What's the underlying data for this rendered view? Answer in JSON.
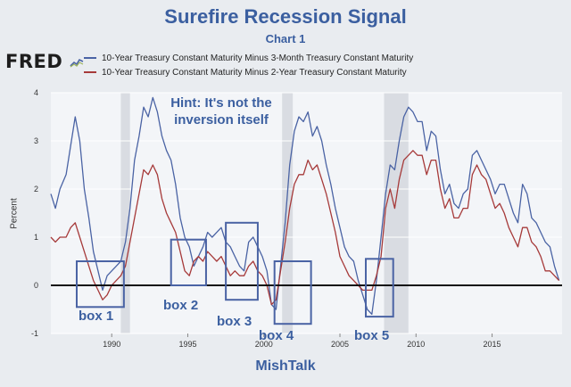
{
  "title": "Surefire Recession Signal",
  "subtitle": "Chart 1",
  "logo": "FRED",
  "footer": "MishTalk",
  "annotation": "Hint: It's not the inversion itself",
  "colors": {
    "series1": "#4a63a4",
    "series2": "#a63a3a",
    "accent": "#3b5fa0",
    "recession": "#d9dce2",
    "box": "#4a63a4"
  },
  "chart_data": {
    "type": "line",
    "title": "Surefire Recession Signal",
    "ylabel": "Percent",
    "xlabel": "",
    "xlim": [
      1986.0,
      2019.6
    ],
    "ylim": [
      -1,
      4
    ],
    "yticks": [
      -1,
      0,
      1,
      2,
      3,
      4
    ],
    "xticks": [
      1990,
      1995,
      2000,
      2005,
      2010,
      2015
    ],
    "recessions": [
      [
        1990.6,
        1991.2
      ],
      [
        2001.2,
        2001.9
      ],
      [
        2007.9,
        2009.5
      ]
    ],
    "boxes": [
      {
        "label": "box 1",
        "x0": 1987.7,
        "x1": 1990.8,
        "y0": -0.45,
        "y1": 0.5
      },
      {
        "label": "box 2",
        "x0": 1993.9,
        "x1": 1996.2,
        "y0": 0.0,
        "y1": 0.95
      },
      {
        "label": "box 3",
        "x0": 1997.5,
        "x1": 1999.6,
        "y0": -0.3,
        "y1": 1.3
      },
      {
        "label": "box 4",
        "x0": 2000.7,
        "x1": 2003.1,
        "y0": -0.8,
        "y1": 0.5
      },
      {
        "label": "box 5",
        "x0": 2006.7,
        "x1": 2008.5,
        "y0": -0.65,
        "y1": 0.55
      }
    ],
    "series": [
      {
        "name": "10-Year Treasury Constant Maturity Minus 3-Month Treasury Constant Maturity",
        "x": [
          1986.0,
          1986.3,
          1986.6,
          1987.0,
          1987.3,
          1987.6,
          1987.9,
          1988.2,
          1988.5,
          1988.8,
          1989.1,
          1989.4,
          1989.7,
          1990.0,
          1990.3,
          1990.6,
          1990.9,
          1991.2,
          1991.5,
          1991.8,
          1992.1,
          1992.4,
          1992.7,
          1993.0,
          1993.3,
          1993.6,
          1993.9,
          1994.2,
          1994.5,
          1994.8,
          1995.1,
          1995.4,
          1995.7,
          1996.0,
          1996.3,
          1996.6,
          1996.9,
          1997.2,
          1997.5,
          1997.8,
          1998.1,
          1998.4,
          1998.7,
          1999.0,
          1999.3,
          1999.6,
          1999.9,
          2000.2,
          2000.5,
          2000.8,
          2001.1,
          2001.4,
          2001.7,
          2002.0,
          2002.3,
          2002.6,
          2002.9,
          2003.2,
          2003.5,
          2003.8,
          2004.1,
          2004.4,
          2004.7,
          2005.0,
          2005.3,
          2005.6,
          2005.9,
          2006.2,
          2006.5,
          2006.8,
          2007.1,
          2007.4,
          2007.7,
          2008.0,
          2008.3,
          2008.6,
          2008.9,
          2009.2,
          2009.5,
          2009.8,
          2010.1,
          2010.4,
          2010.7,
          2011.0,
          2011.3,
          2011.6,
          2011.9,
          2012.2,
          2012.5,
          2012.8,
          2013.1,
          2013.4,
          2013.7,
          2014.0,
          2014.3,
          2014.6,
          2014.9,
          2015.2,
          2015.5,
          2015.8,
          2016.1,
          2016.4,
          2016.7,
          2017.0,
          2017.3,
          2017.6,
          2017.9,
          2018.2,
          2018.5,
          2018.8,
          2019.1,
          2019.4
        ],
        "values": [
          1.9,
          1.6,
          2.0,
          2.3,
          2.9,
          3.5,
          3.0,
          2.0,
          1.4,
          0.7,
          0.3,
          -0.1,
          0.2,
          0.3,
          0.4,
          0.5,
          0.9,
          1.6,
          2.6,
          3.1,
          3.7,
          3.5,
          3.9,
          3.6,
          3.1,
          2.8,
          2.6,
          2.1,
          1.4,
          1.0,
          0.8,
          0.4,
          0.6,
          0.8,
          1.1,
          1.0,
          1.1,
          1.2,
          0.9,
          0.8,
          0.6,
          0.4,
          0.3,
          0.9,
          1.0,
          0.8,
          0.6,
          0.3,
          -0.4,
          -0.5,
          0.4,
          1.3,
          2.5,
          3.2,
          3.5,
          3.4,
          3.6,
          3.1,
          3.3,
          3.0,
          2.5,
          2.1,
          1.6,
          1.2,
          0.8,
          0.6,
          0.5,
          0.1,
          -0.2,
          -0.5,
          -0.6,
          0.1,
          1.0,
          1.9,
          2.5,
          2.4,
          3.0,
          3.5,
          3.7,
          3.6,
          3.4,
          3.4,
          2.8,
          3.2,
          3.1,
          2.4,
          1.9,
          2.1,
          1.7,
          1.6,
          1.9,
          2.0,
          2.7,
          2.8,
          2.6,
          2.4,
          2.2,
          1.9,
          2.1,
          2.1,
          1.8,
          1.5,
          1.3,
          2.1,
          1.9,
          1.4,
          1.3,
          1.1,
          0.9,
          0.8,
          0.4,
          0.1
        ]
      },
      {
        "name": "10-Year Treasury Constant Maturity Minus 2-Year Treasury Constant Maturity",
        "x": [
          1986.0,
          1986.3,
          1986.6,
          1987.0,
          1987.3,
          1987.6,
          1987.9,
          1988.2,
          1988.5,
          1988.8,
          1989.1,
          1989.4,
          1989.7,
          1990.0,
          1990.3,
          1990.6,
          1990.9,
          1991.2,
          1991.5,
          1991.8,
          1992.1,
          1992.4,
          1992.7,
          1993.0,
          1993.3,
          1993.6,
          1993.9,
          1994.2,
          1994.5,
          1994.8,
          1995.1,
          1995.4,
          1995.7,
          1996.0,
          1996.3,
          1996.6,
          1996.9,
          1997.2,
          1997.5,
          1997.8,
          1998.1,
          1998.4,
          1998.7,
          1999.0,
          1999.3,
          1999.6,
          1999.9,
          2000.2,
          2000.5,
          2000.8,
          2001.1,
          2001.4,
          2001.7,
          2002.0,
          2002.3,
          2002.6,
          2002.9,
          2003.2,
          2003.5,
          2003.8,
          2004.1,
          2004.4,
          2004.7,
          2005.0,
          2005.3,
          2005.6,
          2005.9,
          2006.2,
          2006.5,
          2006.8,
          2007.1,
          2007.4,
          2007.7,
          2008.0,
          2008.3,
          2008.6,
          2008.9,
          2009.2,
          2009.5,
          2009.8,
          2010.1,
          2010.4,
          2010.7,
          2011.0,
          2011.3,
          2011.6,
          2011.9,
          2012.2,
          2012.5,
          2012.8,
          2013.1,
          2013.4,
          2013.7,
          2014.0,
          2014.3,
          2014.6,
          2014.9,
          2015.2,
          2015.5,
          2015.8,
          2016.1,
          2016.4,
          2016.7,
          2017.0,
          2017.3,
          2017.6,
          2017.9,
          2018.2,
          2018.5,
          2018.8,
          2019.1,
          2019.4
        ],
        "values": [
          1.0,
          0.9,
          1.0,
          1.0,
          1.2,
          1.3,
          1.0,
          0.7,
          0.4,
          0.1,
          -0.1,
          -0.3,
          -0.2,
          0.0,
          0.1,
          0.2,
          0.4,
          0.9,
          1.4,
          1.9,
          2.4,
          2.3,
          2.5,
          2.3,
          1.8,
          1.5,
          1.3,
          1.1,
          0.7,
          0.3,
          0.2,
          0.5,
          0.6,
          0.5,
          0.7,
          0.6,
          0.5,
          0.6,
          0.4,
          0.2,
          0.3,
          0.2,
          0.2,
          0.4,
          0.5,
          0.3,
          0.2,
          0.0,
          -0.4,
          -0.3,
          0.3,
          0.9,
          1.6,
          2.1,
          2.3,
          2.3,
          2.6,
          2.4,
          2.5,
          2.2,
          1.9,
          1.5,
          1.1,
          0.6,
          0.4,
          0.2,
          0.1,
          0.0,
          -0.1,
          -0.1,
          -0.1,
          0.2,
          0.6,
          1.6,
          2.0,
          1.6,
          2.2,
          2.6,
          2.7,
          2.8,
          2.7,
          2.7,
          2.3,
          2.6,
          2.6,
          2.0,
          1.6,
          1.8,
          1.4,
          1.4,
          1.6,
          1.6,
          2.3,
          2.5,
          2.3,
          2.2,
          1.9,
          1.6,
          1.7,
          1.5,
          1.2,
          1.0,
          0.8,
          1.2,
          1.2,
          0.9,
          0.8,
          0.6,
          0.3,
          0.3,
          0.2,
          0.1
        ]
      }
    ]
  }
}
